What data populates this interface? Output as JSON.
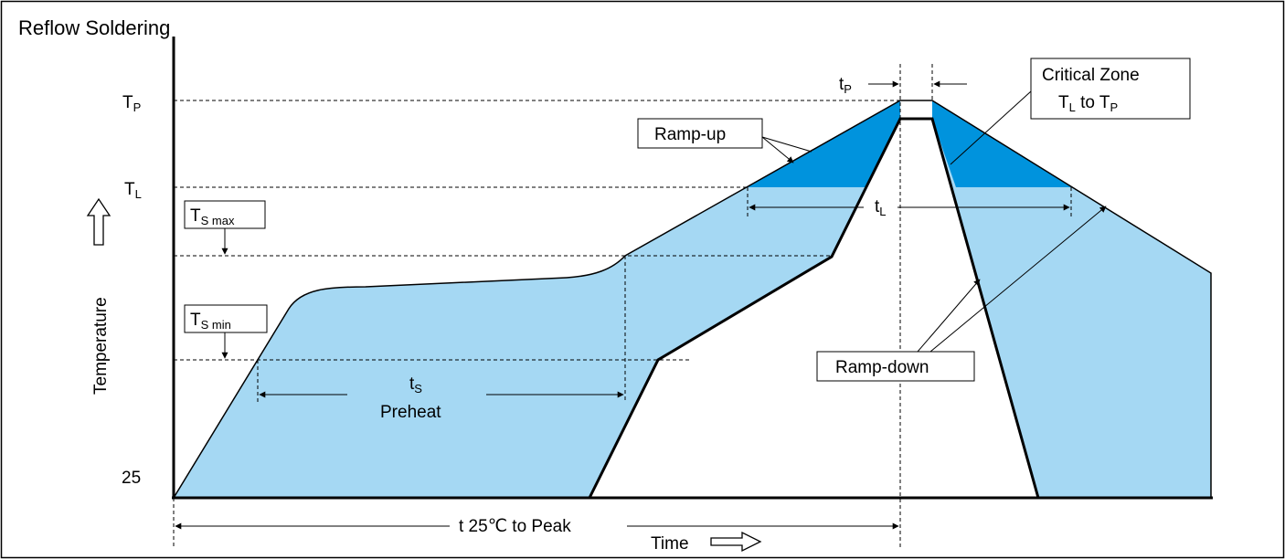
{
  "title": "Reflow Soldering",
  "y_axis": {
    "label": "Temperature",
    "ticks": {
      "tp": "T",
      "tp_sub": "P",
      "tl": "T",
      "tl_sub": "L",
      "t25": "25"
    }
  },
  "x_axis": {
    "label": "Time"
  },
  "labels": {
    "ts_max": {
      "main": "T",
      "sub": "S max"
    },
    "ts_min": {
      "main": "T",
      "sub": "S min"
    },
    "ts": {
      "main": "t",
      "sub": "S"
    },
    "preheat": "Preheat",
    "tp_dur": {
      "main": "t",
      "sub": "P"
    },
    "tl_dur": {
      "main": "t",
      "sub": "L"
    },
    "ramp_up": "Ramp-up",
    "ramp_down": "Ramp-down",
    "critical_zone": {
      "line1": "Critical Zone",
      "line2_a": "T",
      "line2_a_sub": "L",
      "line2_mid": " to T",
      "line2_b_sub": "P"
    },
    "t25_to_peak": "t 25℃  to Peak"
  },
  "colors": {
    "light_fill": "#a5d8f3",
    "critical_fill": "#0093dd",
    "outline": "#000000"
  }
}
